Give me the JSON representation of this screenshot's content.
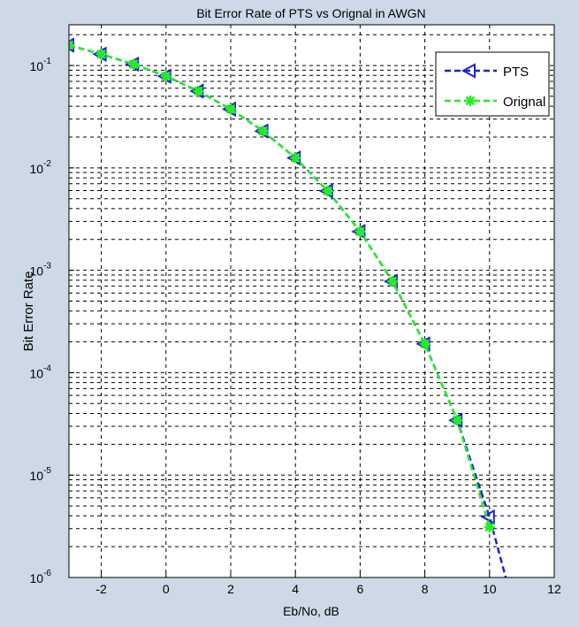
{
  "window": {
    "background": "#cdd9e6"
  },
  "chart_data": {
    "type": "line",
    "title": "Bit Error Rate of PTS vs Orignal in AWGN",
    "xlabel": "Eb/No, dB",
    "ylabel": "Bit Error Rate",
    "xlim": [
      -3,
      12
    ],
    "ylim": [
      1e-06,
      0.25
    ],
    "yscale": "log",
    "grid": true,
    "legend_position": "top-right",
    "xticks": [
      "-2",
      "0",
      "2",
      "4",
      "6",
      "8",
      "10",
      "12"
    ],
    "yticks": [
      {
        "base": "10",
        "exp": "-1"
      },
      {
        "base": "10",
        "exp": "-2"
      },
      {
        "base": "10",
        "exp": "-3"
      },
      {
        "base": "10",
        "exp": "-4"
      },
      {
        "base": "10",
        "exp": "-5"
      },
      {
        "base": "10",
        "exp": "-6"
      }
    ],
    "series": [
      {
        "name": "PTS",
        "color": "#1f1fd6",
        "line_style": "dashed",
        "marker": "left-triangle",
        "x": [
          -3,
          -2,
          -1,
          0,
          1,
          2,
          3,
          4,
          5,
          6,
          7,
          8,
          9,
          10,
          10.5
        ],
        "y": [
          0.158,
          0.129,
          0.103,
          0.0786,
          0.0563,
          0.0375,
          0.0229,
          0.0125,
          0.00595,
          0.00239,
          0.00078,
          0.000191,
          3.43e-05,
          3.9e-06,
          1e-06
        ]
      },
      {
        "name": "Orignal",
        "color": "#22ee22",
        "line_style": "dashed",
        "marker": "star",
        "x": [
          -3,
          -2,
          -1,
          0,
          1,
          2,
          3,
          4,
          5,
          6,
          7,
          8,
          9,
          10
        ],
        "y": [
          0.158,
          0.129,
          0.103,
          0.0786,
          0.0563,
          0.0375,
          0.0229,
          0.0125,
          0.00595,
          0.00239,
          0.00078,
          0.000191,
          3.43e-05,
          3.1e-06
        ]
      }
    ]
  }
}
